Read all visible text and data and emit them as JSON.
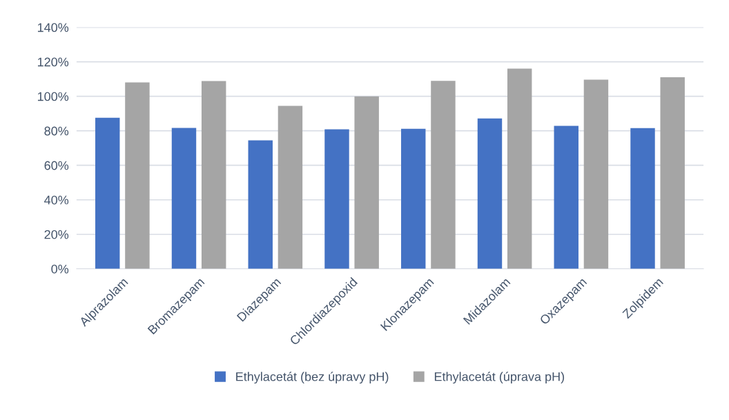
{
  "chart_data": {
    "type": "bar",
    "categories": [
      "Alprazolam",
      "Bromazepam",
      "Diazepam",
      "Chlordiazepoxid",
      "Klonazepam",
      "Midazolam",
      "Oxazepam",
      "Zolpidem"
    ],
    "series": [
      {
        "name": "Ethylacetát (bez úpravy pH)",
        "color": "#4472c4",
        "values": [
          87.6,
          81.7,
          74.5,
          80.9,
          81.2,
          87.2,
          82.9,
          81.6
        ]
      },
      {
        "name": "Ethylacetát (úprava pH)",
        "color": "#a5a5a5",
        "values": [
          108,
          108.8,
          94.5,
          100,
          108.9,
          116,
          109.6,
          111
        ]
      }
    ],
    "ylim": [
      0,
      140
    ],
    "yticks": [
      {
        "value": 0,
        "label": "0%"
      },
      {
        "value": 20,
        "label": "20%"
      },
      {
        "value": 40,
        "label": "40%"
      },
      {
        "value": 60,
        "label": "60%"
      },
      {
        "value": 80,
        "label": "80%"
      },
      {
        "value": 100,
        "label": "100%"
      },
      {
        "value": 120,
        "label": "120%"
      },
      {
        "value": 140,
        "label": "140%"
      }
    ],
    "grid": "y",
    "legend": "bottom"
  }
}
